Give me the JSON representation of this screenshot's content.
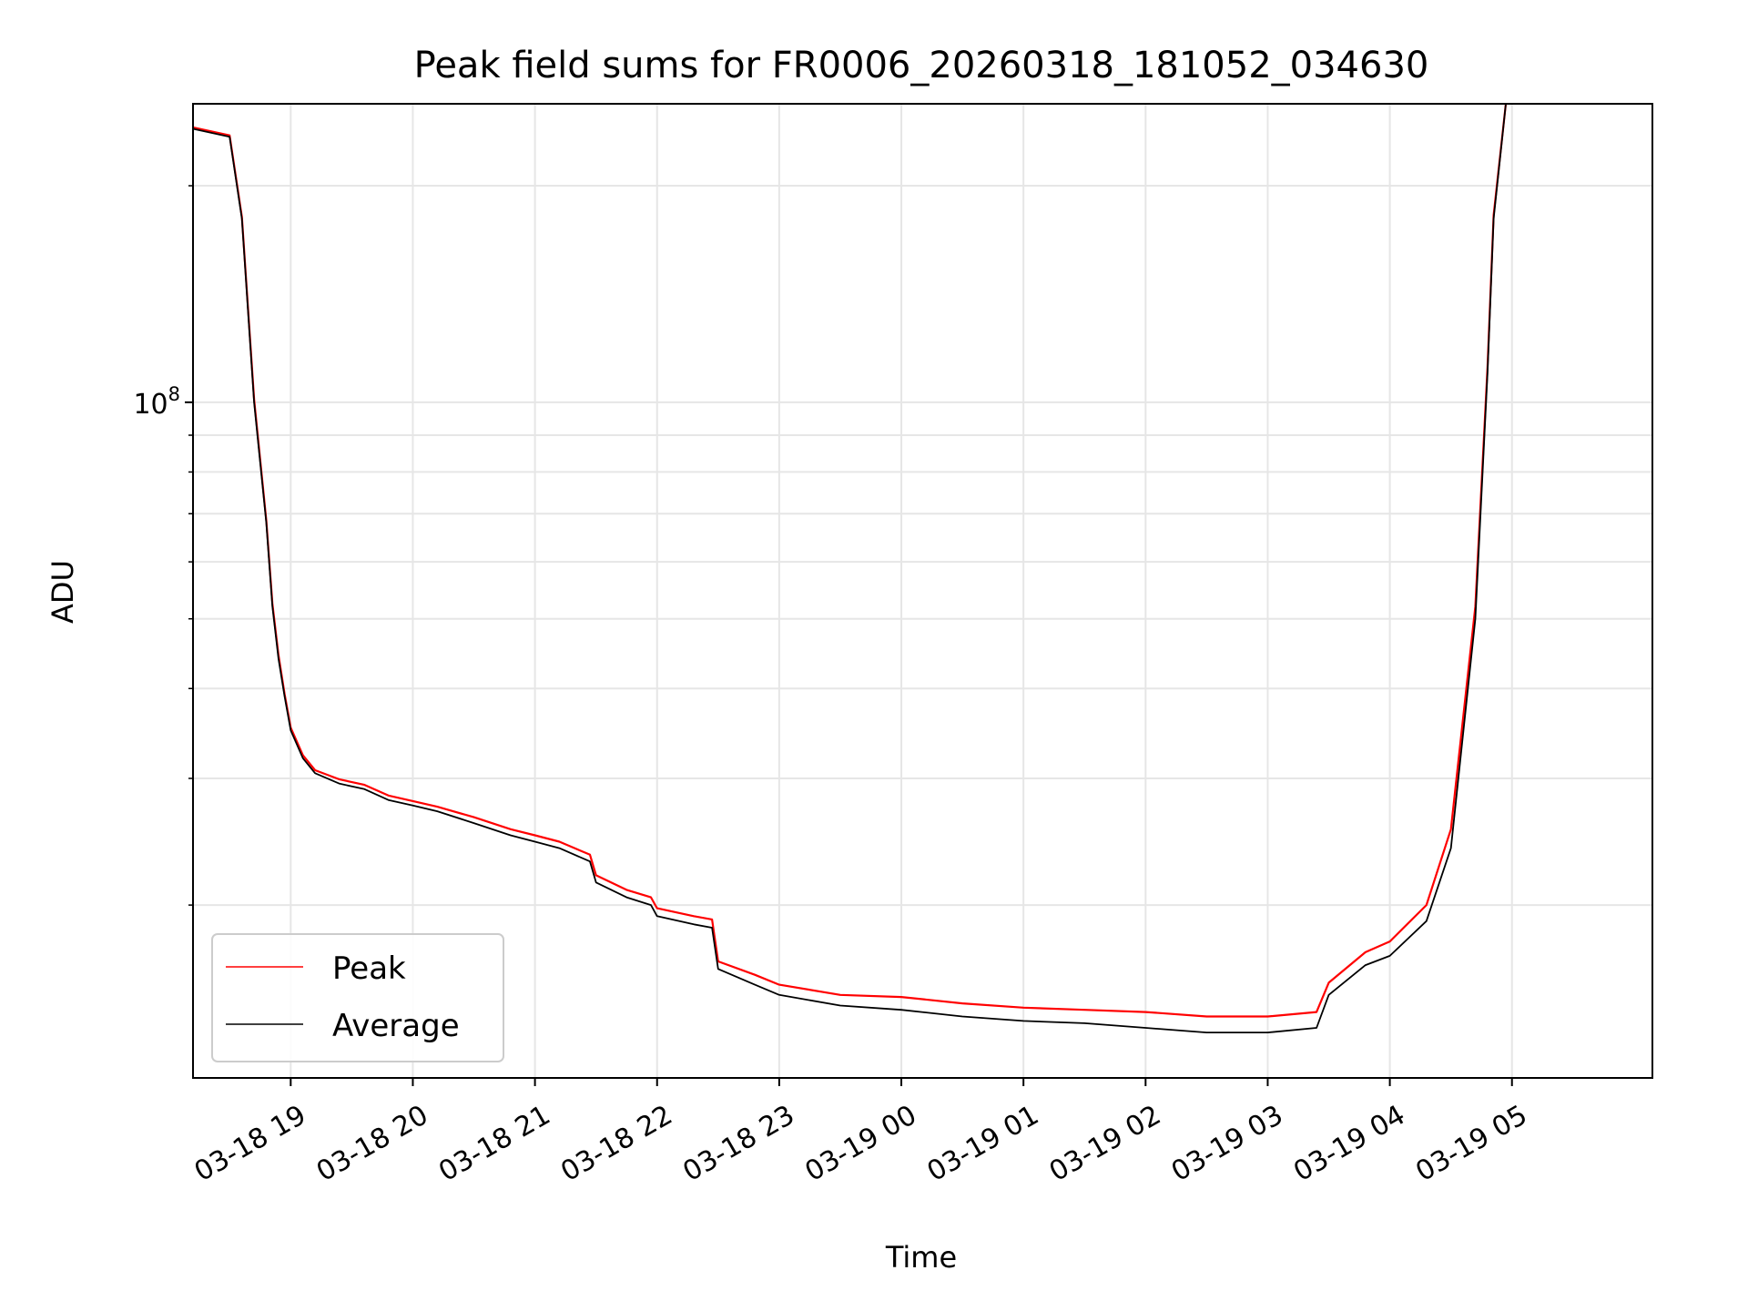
{
  "chart_data": {
    "type": "line",
    "title": "Peak field sums for FR0006_20260318_181052_034630",
    "xlabel": "Time",
    "ylabel": "ADU",
    "y_scale": "log",
    "ylim": [
      11500000,
      260000000
    ],
    "xlim_hours": [
      -0.8,
      11.15
    ],
    "x_ticks": [
      {
        "label": "03-18 19",
        "hours": 0
      },
      {
        "label": "03-18 20",
        "hours": 1
      },
      {
        "label": "03-18 21",
        "hours": 2
      },
      {
        "label": "03-18 22",
        "hours": 3
      },
      {
        "label": "03-18 23",
        "hours": 4
      },
      {
        "label": "03-19 00",
        "hours": 5
      },
      {
        "label": "03-19 01",
        "hours": 6
      },
      {
        "label": "03-19 02",
        "hours": 7
      },
      {
        "label": "03-19 03",
        "hours": 8
      },
      {
        "label": "03-19 04",
        "hours": 9
      },
      {
        "label": "03-19 05",
        "hours": 10
      }
    ],
    "y_major_ticks": [
      {
        "label_base": "10",
        "label_exp": "8",
        "value": 100000000
      }
    ],
    "y_minor_ticks": [
      20000000,
      30000000,
      40000000,
      50000000,
      60000000,
      70000000,
      80000000,
      90000000,
      200000000
    ],
    "grid": true,
    "legend": {
      "position": "lower-left",
      "entries": [
        {
          "name": "Peak",
          "color": "#ff0000"
        },
        {
          "name": "Average",
          "color": "#000000"
        }
      ]
    },
    "series": [
      {
        "name": "Average",
        "color": "#000000",
        "x_hours": [
          -0.8,
          -0.5,
          -0.4,
          -0.3,
          -0.2,
          -0.15,
          -0.1,
          -0.05,
          0,
          0.1,
          0.2,
          0.4,
          0.6,
          0.8,
          1,
          1.2,
          1.5,
          1.8,
          2,
          2.2,
          2.45,
          2.5,
          2.75,
          2.95,
          3,
          3.3,
          3.45,
          3.5,
          3.8,
          4,
          4.5,
          5,
          5.5,
          6,
          6.5,
          7,
          7.5,
          8,
          8.4,
          8.5,
          8.8,
          9,
          9.3,
          9.5,
          9.7,
          9.8,
          9.85,
          9.95
        ],
        "values": [
          240000000,
          234000000,
          180000000,
          100000000,
          68000000,
          52000000,
          44000000,
          39000000,
          35000000,
          32000000,
          30500000,
          29500000,
          29000000,
          28000000,
          27500000,
          27000000,
          26000000,
          25000000,
          24500000,
          24000000,
          23000000,
          21500000,
          20500000,
          20000000,
          19300000,
          18800000,
          18600000,
          16300000,
          15500000,
          15000000,
          14500000,
          14300000,
          14000000,
          13800000,
          13700000,
          13500000,
          13300000,
          13300000,
          13500000,
          15000000,
          16500000,
          17000000,
          19000000,
          24000000,
          50000000,
          110000000,
          180000000,
          260000000
        ]
      },
      {
        "name": "Peak",
        "color": "#ff0000",
        "x_hours": [
          -0.8,
          -0.5,
          -0.4,
          -0.3,
          -0.2,
          -0.15,
          -0.1,
          -0.05,
          0,
          0.1,
          0.2,
          0.4,
          0.6,
          0.8,
          1,
          1.2,
          1.5,
          1.8,
          2,
          2.2,
          2.45,
          2.5,
          2.75,
          2.95,
          3,
          3.3,
          3.45,
          3.5,
          3.8,
          4,
          4.5,
          5,
          5.5,
          6,
          6.5,
          7,
          7.5,
          8,
          8.4,
          8.5,
          8.8,
          9,
          9.3,
          9.5,
          9.7,
          9.8,
          9.85,
          9.95
        ],
        "values": [
          241000000,
          235000000,
          181000000,
          101000000,
          68500000,
          52500000,
          44500000,
          39300000,
          35300000,
          32300000,
          30800000,
          29900000,
          29400000,
          28400000,
          27900000,
          27400000,
          26500000,
          25500000,
          25000000,
          24500000,
          23500000,
          22000000,
          21000000,
          20500000,
          19800000,
          19300000,
          19100000,
          16700000,
          16000000,
          15500000,
          15000000,
          14900000,
          14600000,
          14400000,
          14300000,
          14200000,
          14000000,
          14000000,
          14200000,
          15600000,
          17200000,
          17800000,
          20000000,
          25500000,
          52000000,
          112000000,
          182000000,
          262000000
        ]
      }
    ]
  }
}
